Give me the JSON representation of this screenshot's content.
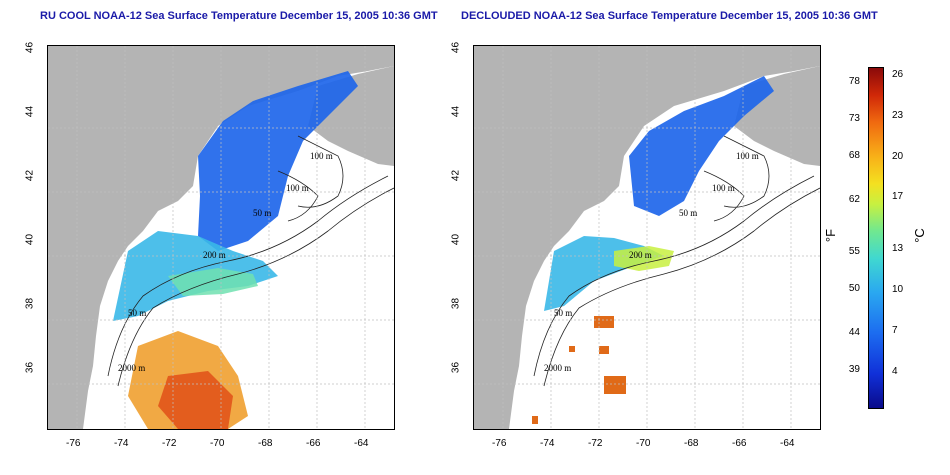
{
  "titles": {
    "left": "RU COOL NOAA-12 Sea Surface Temperature December 15, 2005 10:36 GMT",
    "right": "DECLOUDED NOAA-12 Sea Surface Temperature December 15, 2005 10:36 GMT"
  },
  "axes": {
    "lat_ticks": [
      "46",
      "44",
      "42",
      "40",
      "38",
      "36"
    ],
    "lon_ticks": [
      "-76",
      "-74",
      "-72",
      "-70",
      "-68",
      "-66",
      "-64"
    ]
  },
  "contour_labels": {
    "left": [
      "100 m",
      "100 m",
      "50 m",
      "200 m",
      "50 m",
      "2000 m"
    ],
    "right": [
      "100 m",
      "100 m",
      "50 m",
      "200 m",
      "50 m",
      "2000 m"
    ]
  },
  "colorbar": {
    "fahrenheit_ticks": [
      "78",
      "73",
      "68",
      "62",
      "55",
      "50",
      "44",
      "39"
    ],
    "celsius_ticks": [
      "26",
      "23",
      "20",
      "17",
      "13",
      "10",
      "7",
      "4"
    ],
    "fahrenheit_unit": "°F",
    "celsius_unit": "°C"
  },
  "colors": {
    "land": "#b4b4b4",
    "title": "#1a1aa8",
    "cold": "#1c5ce8",
    "warm": "#e0401a"
  }
}
